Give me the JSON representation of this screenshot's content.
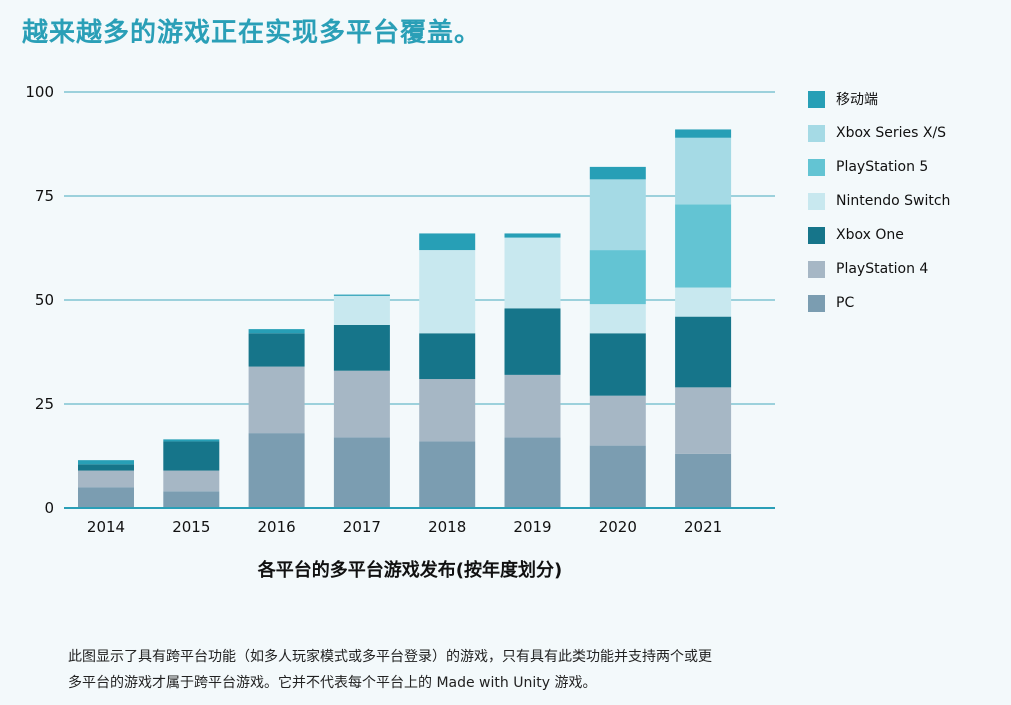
{
  "headline": "越来越多的游戏正在实现多平台覆盖。",
  "footnote_line1": "此图显示了具有跨平台功能（如多人玩家模式或多平台登录）的游戏，只有具有此类功能并支持两个或更",
  "footnote_line2": "多平台的游戏才属于跨平台游戏。它并不代表每个平台上的 Made with Unity 游戏。",
  "chart_data": {
    "type": "bar",
    "stacked": true,
    "title": "越来越多的游戏正在实现多平台覆盖。",
    "xlabel": "各平台的多平台游戏发布(按年度划分)",
    "ylabel": "",
    "ylim": [
      0,
      100
    ],
    "yticks": [
      0,
      25,
      50,
      75,
      100
    ],
    "grid": true,
    "legend_position": "right",
    "categories": [
      "2014",
      "2015",
      "2016",
      "2017",
      "2018",
      "2019",
      "2020",
      "2021"
    ],
    "series": [
      {
        "name": "PC",
        "color": "#7b9db1",
        "values": [
          5,
          4,
          18,
          17,
          16,
          17,
          15,
          13
        ]
      },
      {
        "name": "PlayStation 4",
        "color": "#a6b7c5",
        "values": [
          4,
          5,
          16,
          16,
          15,
          15,
          12,
          16
        ]
      },
      {
        "name": "Xbox One",
        "color": "#16758a",
        "values": [
          1.5,
          7,
          8,
          11,
          11,
          16,
          15,
          17
        ]
      },
      {
        "name": "Nintendo Switch",
        "color": "#c8e8ef",
        "values": [
          0,
          0,
          0,
          7,
          20,
          17,
          7,
          7
        ]
      },
      {
        "name": "PlayStation 5",
        "color": "#63c4d3",
        "values": [
          0,
          0,
          0,
          0,
          0,
          0,
          13,
          20
        ]
      },
      {
        "name": "Xbox Series X/S",
        "color": "#a5dae5",
        "values": [
          0,
          0,
          0,
          0,
          0,
          0,
          17,
          16
        ]
      },
      {
        "name": "移动端",
        "color": "#279fb6",
        "values": [
          1,
          0.5,
          1,
          0.3,
          4,
          1,
          3,
          2
        ]
      }
    ]
  }
}
